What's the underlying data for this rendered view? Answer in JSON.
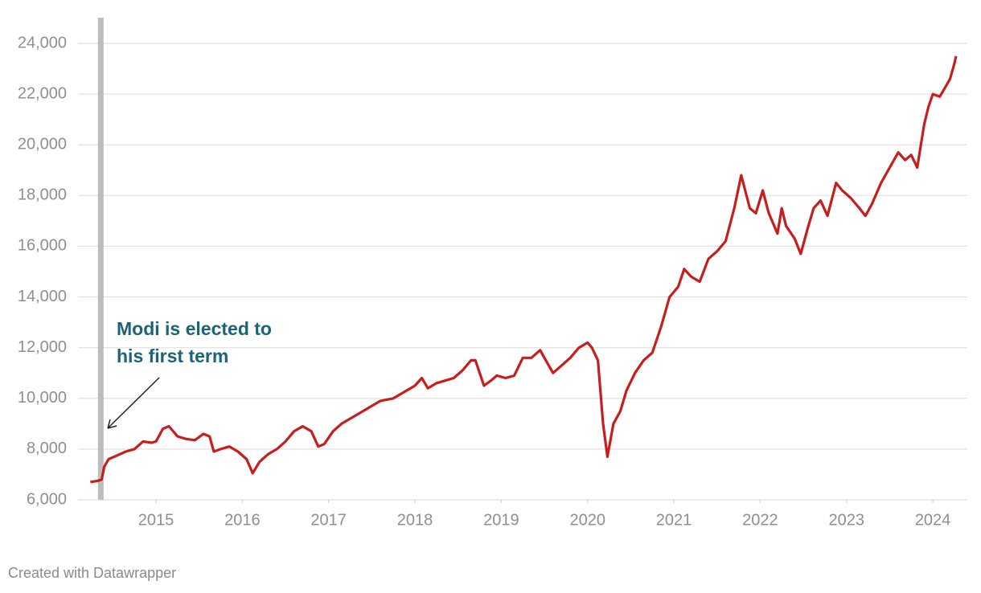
{
  "chart_data": {
    "type": "line",
    "x": [
      2014.24,
      2014.33,
      2014.37,
      2014.4,
      2014.45,
      2014.55,
      2014.65,
      2014.75,
      2014.85,
      2014.95,
      2015.0,
      2015.08,
      2015.15,
      2015.25,
      2015.35,
      2015.45,
      2015.55,
      2015.62,
      2015.67,
      2015.75,
      2015.85,
      2015.95,
      2016.05,
      2016.12,
      2016.2,
      2016.3,
      2016.4,
      2016.5,
      2016.6,
      2016.7,
      2016.8,
      2016.88,
      2016.95,
      2017.05,
      2017.15,
      2017.3,
      2017.45,
      2017.6,
      2017.75,
      2017.9,
      2018.0,
      2018.08,
      2018.15,
      2018.25,
      2018.35,
      2018.45,
      2018.55,
      2018.65,
      2018.7,
      2018.8,
      2018.88,
      2018.95,
      2019.05,
      2019.15,
      2019.25,
      2019.35,
      2019.45,
      2019.55,
      2019.6,
      2019.7,
      2019.8,
      2019.9,
      2020.0,
      2020.05,
      2020.12,
      2020.18,
      2020.23,
      2020.3,
      2020.38,
      2020.45,
      2020.55,
      2020.65,
      2020.75,
      2020.85,
      2020.95,
      2021.05,
      2021.12,
      2021.2,
      2021.3,
      2021.4,
      2021.5,
      2021.6,
      2021.7,
      2021.78,
      2021.88,
      2021.95,
      2022.03,
      2022.1,
      2022.2,
      2022.25,
      2022.3,
      2022.4,
      2022.47,
      2022.55,
      2022.62,
      2022.7,
      2022.78,
      2022.88,
      2022.95,
      2023.05,
      2023.15,
      2023.22,
      2023.3,
      2023.4,
      2023.5,
      2023.6,
      2023.68,
      2023.75,
      2023.82,
      2023.9,
      2023.95,
      2024.0,
      2024.08,
      2024.15,
      2024.2,
      2024.25,
      2024.27
    ],
    "series": [
      {
        "color": "#c71e1d",
        "values": [
          6700,
          6750,
          6800,
          7300,
          7600,
          7750,
          7900,
          8000,
          8300,
          8250,
          8300,
          8800,
          8900,
          8500,
          8400,
          8350,
          8600,
          8500,
          7900,
          8000,
          8100,
          7900,
          7600,
          7050,
          7500,
          7800,
          8000,
          8300,
          8700,
          8900,
          8700,
          8100,
          8200,
          8700,
          9000,
          9300,
          9600,
          9900,
          10000,
          10300,
          10500,
          10800,
          10400,
          10600,
          10700,
          10800,
          11100,
          11500,
          11500,
          10500,
          10700,
          10900,
          10800,
          10900,
          11600,
          11600,
          11900,
          11300,
          11000,
          11300,
          11600,
          12000,
          12200,
          12000,
          11500,
          9000,
          7700,
          9000,
          9500,
          10300,
          11000,
          11500,
          11800,
          12800,
          14000,
          14400,
          15100,
          14800,
          14600,
          15500,
          15800,
          16200,
          17500,
          18800,
          17500,
          17300,
          18200,
          17300,
          16500,
          17500,
          16800,
          16300,
          15700,
          16700,
          17500,
          17800,
          17200,
          18500,
          18200,
          17900,
          17500,
          17200,
          17700,
          18500,
          19100,
          19700,
          19400,
          19600,
          19100,
          20800,
          21500,
          22000,
          21900,
          22300,
          22600,
          23200,
          23500
        ]
      }
    ],
    "xlim": [
      2014.1,
      2024.4
    ],
    "xticks": [
      2015,
      2016,
      2017,
      2018,
      2019,
      2020,
      2021,
      2022,
      2023,
      2024
    ],
    "ylim": [
      6000,
      24000
    ],
    "yticks": [
      {
        "value": 6000,
        "label": "6,000"
      },
      {
        "value": 8000,
        "label": "8,000"
      },
      {
        "value": 10000,
        "label": "10,000"
      },
      {
        "value": 12000,
        "label": "12,000"
      },
      {
        "value": 14000,
        "label": "14,000"
      },
      {
        "value": 16000,
        "label": "16,000"
      },
      {
        "value": 18000,
        "label": "18,000"
      },
      {
        "value": 20000,
        "label": "20,000"
      },
      {
        "value": 22000,
        "label": "22,000"
      },
      {
        "value": 24000,
        "label": "24,000"
      }
    ],
    "grid": true,
    "highlight_x": 2014.36,
    "annotation": [
      "Modi is elected to",
      "his first term"
    ],
    "source": "Created with Datawrapper"
  }
}
